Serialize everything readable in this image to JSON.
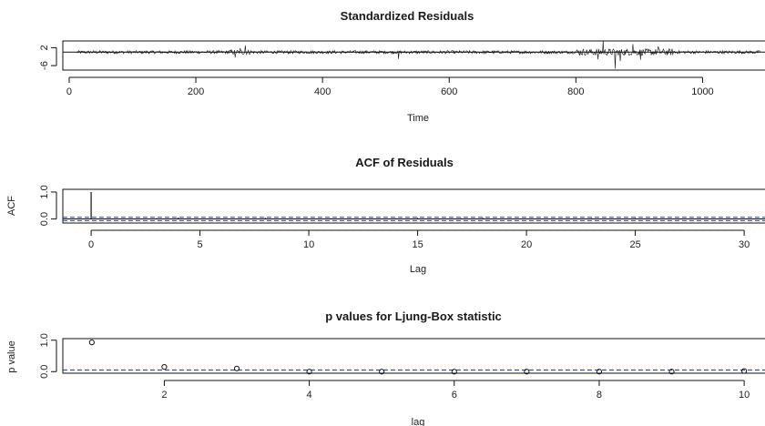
{
  "colors": {
    "ink": "#111111",
    "confidence_band": "#2a3d9a",
    "background": "#ffffff"
  },
  "chart_data": [
    {
      "type": "line",
      "title": "Standardized Residuals",
      "xlabel": "Time",
      "ylabel": "",
      "x_ticks": [
        0,
        200,
        400,
        600,
        800,
        1000
      ],
      "y_ticks": [
        -6,
        2
      ],
      "y_tick_labels": [
        "-6",
        "2"
      ],
      "xlim": [
        -10,
        1100
      ],
      "ylim": [
        -8,
        5
      ],
      "n_points": 1090,
      "reference_line_y": 0,
      "note_points": [
        {
          "x": 262,
          "y": -2.4
        },
        {
          "x": 270,
          "y": 1.8
        },
        {
          "x": 278,
          "y": 3.0
        },
        {
          "x": 520,
          "y": -3.0
        },
        {
          "x": 835,
          "y": -3.2
        },
        {
          "x": 843,
          "y": 5.0
        },
        {
          "x": 862,
          "y": -7.4
        },
        {
          "x": 870,
          "y": -4.0
        },
        {
          "x": 890,
          "y": 3.6
        },
        {
          "x": 902,
          "y": -3.4
        },
        {
          "x": 930,
          "y": 2.6
        }
      ],
      "grid": false
    },
    {
      "type": "bar",
      "title": "ACF of Residuals",
      "xlabel": "Lag",
      "ylabel": "ACF",
      "x_ticks": [
        0,
        5,
        10,
        15,
        20,
        25,
        30
      ],
      "y_ticks": [
        0.0,
        1.0
      ],
      "y_tick_labels": [
        "0.0",
        "1.0"
      ],
      "xlim": [
        -1.3,
        31
      ],
      "ylim": [
        -0.15,
        1.1
      ],
      "lags": [
        0,
        1,
        2,
        3,
        4,
        5,
        6,
        7,
        8,
        9,
        10,
        11,
        12,
        13,
        14,
        15,
        16,
        17,
        18,
        19,
        20,
        21,
        22,
        23,
        24,
        25,
        26,
        27,
        28,
        29,
        30
      ],
      "values": [
        1.0,
        0.01,
        -0.02,
        0.03,
        0.05,
        -0.01,
        0.02,
        0.0,
        0.04,
        -0.02,
        0.01,
        0.03,
        -0.01,
        0.02,
        0.03,
        0.04,
        -0.02,
        0.03,
        0.04,
        0.01,
        -0.01,
        0.02,
        0.01,
        0.03,
        0.0,
        0.03,
        0.01,
        -0.02,
        0.02,
        0.01,
        0.02
      ],
      "confidence_band": 0.06,
      "grid": false
    },
    {
      "type": "scatter",
      "title": "p values for Ljung-Box statistic",
      "xlabel": "lag",
      "ylabel": "p value",
      "x_ticks": [
        2,
        4,
        6,
        8,
        10
      ],
      "y_ticks": [
        0.0,
        1.0
      ],
      "y_tick_labels": [
        "0.0",
        "1.0"
      ],
      "xlim": [
        0.6,
        10.3
      ],
      "ylim": [
        -0.05,
        1.05
      ],
      "x": [
        1,
        2,
        3,
        4,
        5,
        6,
        7,
        8,
        9,
        10
      ],
      "y": [
        0.93,
        0.15,
        0.1,
        0.0,
        0.0,
        0.0,
        0.0,
        0.0,
        0.0,
        0.02
      ],
      "reference_line_y": 0.05,
      "grid": false
    }
  ]
}
